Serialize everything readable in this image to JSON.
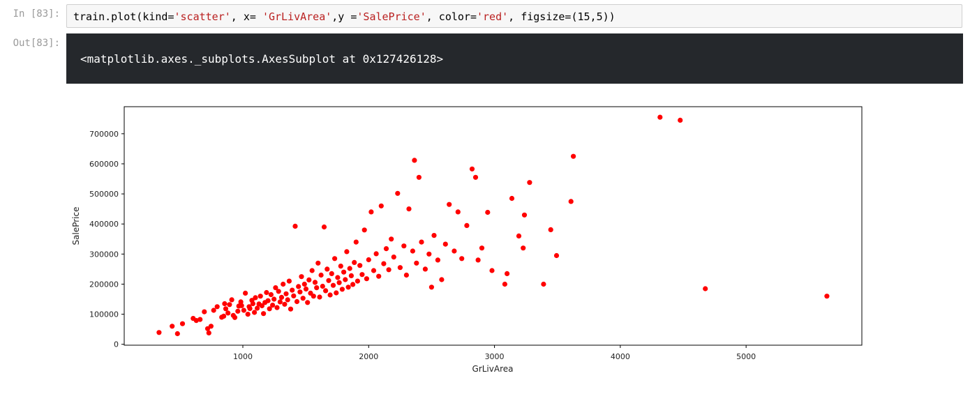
{
  "notebook": {
    "in_prompt": "In [83]:",
    "out_prompt": "Out[83]:",
    "code": {
      "p1": "train.plot(kind=",
      "s1": "'scatter'",
      "p2": ", x= ",
      "s2": "'GrLivArea'",
      "p3": ",y =",
      "s3": "'SalePrice'",
      "p4": ", color=",
      "s4": "'red'",
      "p5": ", figsize=(15,5))"
    },
    "output_text": "<matplotlib.axes._subplots.AxesSubplot at 0x127426128>"
  },
  "chart_data": {
    "type": "scatter",
    "xlabel": "GrLivArea",
    "ylabel": "SalePrice",
    "xlim": [
      57,
      5920
    ],
    "ylim": [
      -3000,
      790000
    ],
    "xticks": [
      1000,
      2000,
      3000,
      4000,
      5000
    ],
    "yticks": [
      0,
      100000,
      200000,
      300000,
      400000,
      500000,
      600000,
      700000
    ],
    "color": "#ff0000",
    "grid": false,
    "series": [
      {
        "points": [
          [
            334,
            39300
          ],
          [
            438,
            60000
          ],
          [
            480,
            35311
          ],
          [
            520,
            68500
          ],
          [
            605,
            86000
          ],
          [
            630,
            79000
          ],
          [
            660,
            82500
          ],
          [
            694,
            108000
          ],
          [
            720,
            52000
          ],
          [
            730,
            37900
          ],
          [
            747,
            60000
          ],
          [
            768,
            113000
          ],
          [
            796,
            125000
          ],
          [
            832,
            90000
          ],
          [
            848,
            93500
          ],
          [
            855,
            135000
          ],
          [
            864,
            118000
          ],
          [
            882,
            104000
          ],
          [
            894,
            132000
          ],
          [
            912,
            148000
          ],
          [
            924,
            96000
          ],
          [
            936,
            89000
          ],
          [
            960,
            110000
          ],
          [
            968,
            127000
          ],
          [
            984,
            141000
          ],
          [
            990,
            128500
          ],
          [
            1008,
            113000
          ],
          [
            1020,
            170000
          ],
          [
            1040,
            100000
          ],
          [
            1050,
            125000
          ],
          [
            1056,
            119000
          ],
          [
            1072,
            146000
          ],
          [
            1080,
            135000
          ],
          [
            1092,
            106000
          ],
          [
            1100,
            155000
          ],
          [
            1114,
            120000
          ],
          [
            1128,
            134000
          ],
          [
            1140,
            160000
          ],
          [
            1152,
            128000
          ],
          [
            1164,
            102000
          ],
          [
            1176,
            139000
          ],
          [
            1188,
            172000
          ],
          [
            1200,
            145000
          ],
          [
            1212,
            118000
          ],
          [
            1224,
            165000
          ],
          [
            1236,
            130000
          ],
          [
            1248,
            150000
          ],
          [
            1260,
            188000
          ],
          [
            1272,
            122000
          ],
          [
            1284,
            176000
          ],
          [
            1296,
            141000
          ],
          [
            1308,
            156000
          ],
          [
            1320,
            200000
          ],
          [
            1332,
            133000
          ],
          [
            1344,
            168000
          ],
          [
            1356,
            148000
          ],
          [
            1368,
            210000
          ],
          [
            1380,
            117000
          ],
          [
            1392,
            180000
          ],
          [
            1404,
            161000
          ],
          [
            1416,
            392500
          ],
          [
            1430,
            142000
          ],
          [
            1442,
            192000
          ],
          [
            1454,
            174000
          ],
          [
            1466,
            225000
          ],
          [
            1478,
            153000
          ],
          [
            1490,
            200000
          ],
          [
            1502,
            184000
          ],
          [
            1514,
            139000
          ],
          [
            1526,
            214000
          ],
          [
            1538,
            170000
          ],
          [
            1550,
            245000
          ],
          [
            1562,
            160000
          ],
          [
            1574,
            206000
          ],
          [
            1586,
            188000
          ],
          [
            1598,
            270000
          ],
          [
            1610,
            157000
          ],
          [
            1622,
            230000
          ],
          [
            1634,
            193000
          ],
          [
            1646,
            390000
          ],
          [
            1658,
            178000
          ],
          [
            1670,
            250000
          ],
          [
            1682,
            212000
          ],
          [
            1694,
            164000
          ],
          [
            1706,
            235000
          ],
          [
            1718,
            196000
          ],
          [
            1730,
            285000
          ],
          [
            1742,
            171000
          ],
          [
            1754,
            222000
          ],
          [
            1766,
            205000
          ],
          [
            1778,
            260000
          ],
          [
            1790,
            183000
          ],
          [
            1802,
            240000
          ],
          [
            1814,
            215000
          ],
          [
            1826,
            308000
          ],
          [
            1838,
            190000
          ],
          [
            1850,
            252000
          ],
          [
            1862,
            228000
          ],
          [
            1874,
            199000
          ],
          [
            1886,
            272000
          ],
          [
            1900,
            340000
          ],
          [
            1912,
            210000
          ],
          [
            1930,
            262000
          ],
          [
            1948,
            232000
          ],
          [
            1966,
            380000
          ],
          [
            1984,
            218000
          ],
          [
            2000,
            281000
          ],
          [
            2020,
            440000
          ],
          [
            2040,
            245000
          ],
          [
            2060,
            301000
          ],
          [
            2080,
            226000
          ],
          [
            2100,
            460000
          ],
          [
            2120,
            268000
          ],
          [
            2140,
            318000
          ],
          [
            2160,
            248000
          ],
          [
            2180,
            350000
          ],
          [
            2200,
            290000
          ],
          [
            2230,
            501837
          ],
          [
            2250,
            255000
          ],
          [
            2280,
            327000
          ],
          [
            2300,
            230000
          ],
          [
            2320,
            450000
          ],
          [
            2350,
            310000
          ],
          [
            2364,
            611657
          ],
          [
            2380,
            270000
          ],
          [
            2400,
            555000
          ],
          [
            2420,
            340000
          ],
          [
            2450,
            250000
          ],
          [
            2480,
            300000
          ],
          [
            2500,
            190000
          ],
          [
            2520,
            362000
          ],
          [
            2550,
            280000
          ],
          [
            2580,
            215000
          ],
          [
            2610,
            333000
          ],
          [
            2640,
            465000
          ],
          [
            2680,
            310000
          ],
          [
            2710,
            440000
          ],
          [
            2740,
            285000
          ],
          [
            2780,
            395000
          ],
          [
            2822,
            582933
          ],
          [
            2850,
            555000
          ],
          [
            2870,
            280000
          ],
          [
            2900,
            320000
          ],
          [
            2946,
            438780
          ],
          [
            2980,
            245000
          ],
          [
            3082,
            200000
          ],
          [
            3100,
            235000
          ],
          [
            3138,
            485000
          ],
          [
            3194,
            360000
          ],
          [
            3228,
            320000
          ],
          [
            3238,
            430000
          ],
          [
            3279,
            538000
          ],
          [
            3390,
            200000
          ],
          [
            3447,
            381000
          ],
          [
            3493,
            295000
          ],
          [
            3608,
            475000
          ],
          [
            3627,
            625000
          ],
          [
            4316,
            755000
          ],
          [
            4476,
            745000
          ],
          [
            4676,
            184750
          ],
          [
            5642,
            160000
          ]
        ]
      }
    ]
  }
}
